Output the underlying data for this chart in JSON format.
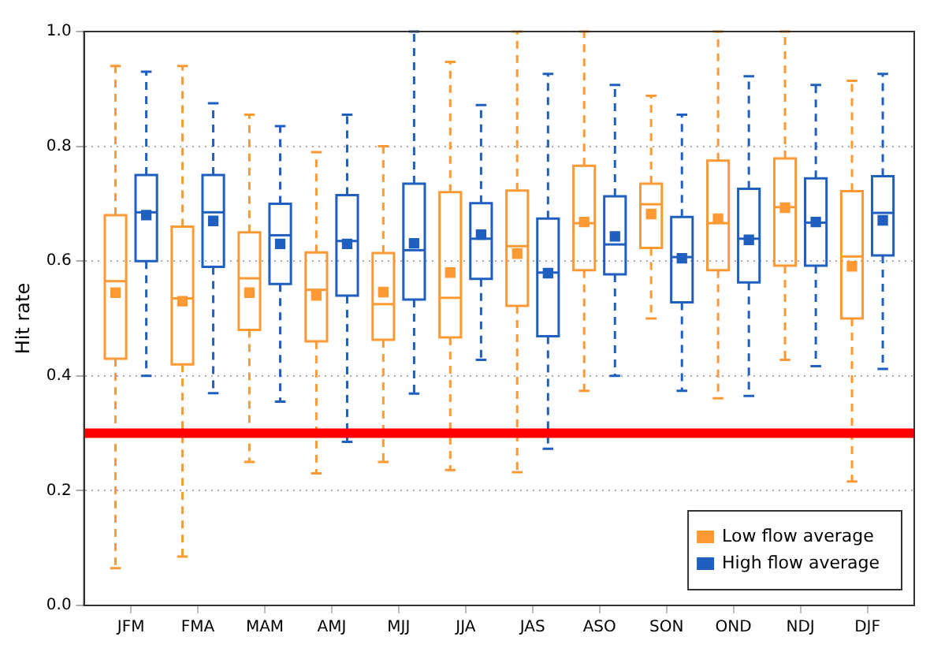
{
  "chart_data": {
    "type": "box",
    "ylabel": "Hit rate",
    "categories": [
      "JFM",
      "FMA",
      "MAM",
      "AMJ",
      "MJJ",
      "JJA",
      "JAS",
      "ASO",
      "SON",
      "OND",
      "NDJ",
      "DJF"
    ],
    "ylim": [
      0,
      1
    ],
    "yticks": [
      {
        "value": 0,
        "label": "0.0"
      },
      0.2,
      0.4,
      0.6,
      0.8,
      {
        "value": 1,
        "label": "1.0"
      }
    ],
    "grid": "y",
    "legend": "bottom right",
    "marker": "square",
    "ref_lines": [
      {
        "axis": "y",
        "value": 0.3,
        "color": "#ff0000"
      }
    ],
    "series": [
      {
        "name": "Low flow average",
        "color": "#ff9933",
        "boxes": [
          {
            "low": 0.065,
            "q1": 0.43,
            "median": 0.565,
            "q3": 0.68,
            "high": 0.94,
            "mean": 0.545
          },
          {
            "low": 0.085,
            "q1": 0.42,
            "median": 0.535,
            "q3": 0.66,
            "high": 0.94,
            "mean": 0.53
          },
          {
            "low": 0.25,
            "q1": 0.48,
            "median": 0.57,
            "q3": 0.65,
            "high": 0.855,
            "mean": 0.545
          },
          {
            "low": 0.23,
            "q1": 0.46,
            "median": 0.55,
            "q3": 0.615,
            "high": 0.79,
            "mean": 0.54
          },
          {
            "low": 0.25,
            "q1": 0.463,
            "median": 0.525,
            "q3": 0.614,
            "high": 0.8,
            "mean": 0.546
          },
          {
            "low": 0.236,
            "q1": 0.467,
            "median": 0.536,
            "q3": 0.72,
            "high": 0.947,
            "mean": 0.58
          },
          {
            "low": 0.232,
            "q1": 0.522,
            "median": 0.626,
            "q3": 0.723,
            "high": 1.0,
            "mean": 0.613
          },
          {
            "low": 0.374,
            "q1": 0.584,
            "median": 0.666,
            "q3": 0.766,
            "high": 1.0,
            "mean": 0.668
          },
          {
            "low": 0.5,
            "q1": 0.623,
            "median": 0.699,
            "q3": 0.735,
            "high": 0.888,
            "mean": 0.682
          },
          {
            "low": 0.361,
            "q1": 0.584,
            "median": 0.666,
            "q3": 0.775,
            "high": 1.0,
            "mean": 0.674
          },
          {
            "low": 0.428,
            "q1": 0.592,
            "median": 0.694,
            "q3": 0.779,
            "high": 1.0,
            "mean": 0.693
          },
          {
            "low": 0.216,
            "q1": 0.5,
            "median": 0.608,
            "q3": 0.722,
            "high": 0.914,
            "mean": 0.591
          }
        ]
      },
      {
        "name": "High flow average",
        "color": "#1f5fbf",
        "boxes": [
          {
            "low": 0.4,
            "q1": 0.6,
            "median": 0.685,
            "q3": 0.75,
            "high": 0.93,
            "mean": 0.68
          },
          {
            "low": 0.37,
            "q1": 0.59,
            "median": 0.685,
            "q3": 0.75,
            "high": 0.875,
            "mean": 0.67
          },
          {
            "low": 0.355,
            "q1": 0.56,
            "median": 0.645,
            "q3": 0.7,
            "high": 0.835,
            "mean": 0.63
          },
          {
            "low": 0.285,
            "q1": 0.54,
            "median": 0.635,
            "q3": 0.715,
            "high": 0.855,
            "mean": 0.63
          },
          {
            "low": 0.369,
            "q1": 0.533,
            "median": 0.619,
            "q3": 0.735,
            "high": 1.0,
            "mean": 0.631
          },
          {
            "low": 0.428,
            "q1": 0.569,
            "median": 0.639,
            "q3": 0.701,
            "high": 0.872,
            "mean": 0.646
          },
          {
            "low": 0.273,
            "q1": 0.469,
            "median": 0.58,
            "q3": 0.674,
            "high": 0.926,
            "mean": 0.579
          },
          {
            "low": 0.4,
            "q1": 0.577,
            "median": 0.629,
            "q3": 0.713,
            "high": 0.907,
            "mean": 0.643
          },
          {
            "low": 0.374,
            "q1": 0.528,
            "median": 0.607,
            "q3": 0.677,
            "high": 0.855,
            "mean": 0.605
          },
          {
            "low": 0.365,
            "q1": 0.563,
            "median": 0.639,
            "q3": 0.726,
            "high": 0.922,
            "mean": 0.637
          },
          {
            "low": 0.417,
            "q1": 0.592,
            "median": 0.667,
            "q3": 0.744,
            "high": 0.907,
            "mean": 0.668
          },
          {
            "low": 0.412,
            "q1": 0.61,
            "median": 0.684,
            "q3": 0.748,
            "high": 0.926,
            "mean": 0.671
          }
        ]
      }
    ]
  }
}
